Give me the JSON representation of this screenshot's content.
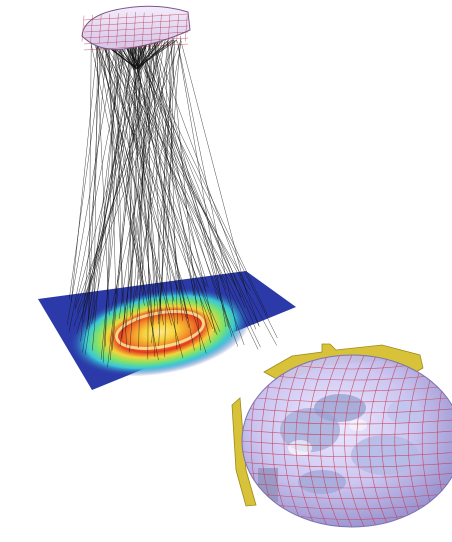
{
  "figure": {
    "background": "#ffffff",
    "panels": [
      {
        "id": "ray-trace",
        "content": "reflector-ray-trace-with-irradiance-map",
        "colors": {
          "reflector_fill": "#e8d9f2",
          "reflector_mesh": "#b0243a",
          "rays": "#111111",
          "map_background": "#2b3aa8",
          "map_ramp": [
            "#2b3aa8",
            "#2f7ad6",
            "#38c7d9",
            "#7de36b",
            "#f2ea3a",
            "#f7a12a",
            "#e23a1f",
            "#ffe98a"
          ]
        }
      },
      {
        "id": "lamp-assembly",
        "content": "ellipsoidal-reflector-lamp-model",
        "colors": {
          "shell_fill": "#c9c3f0",
          "shell_mesh": "#c83a55",
          "bracket": "#d8c23a",
          "inner_parts": "#aab2de"
        }
      }
    ]
  }
}
